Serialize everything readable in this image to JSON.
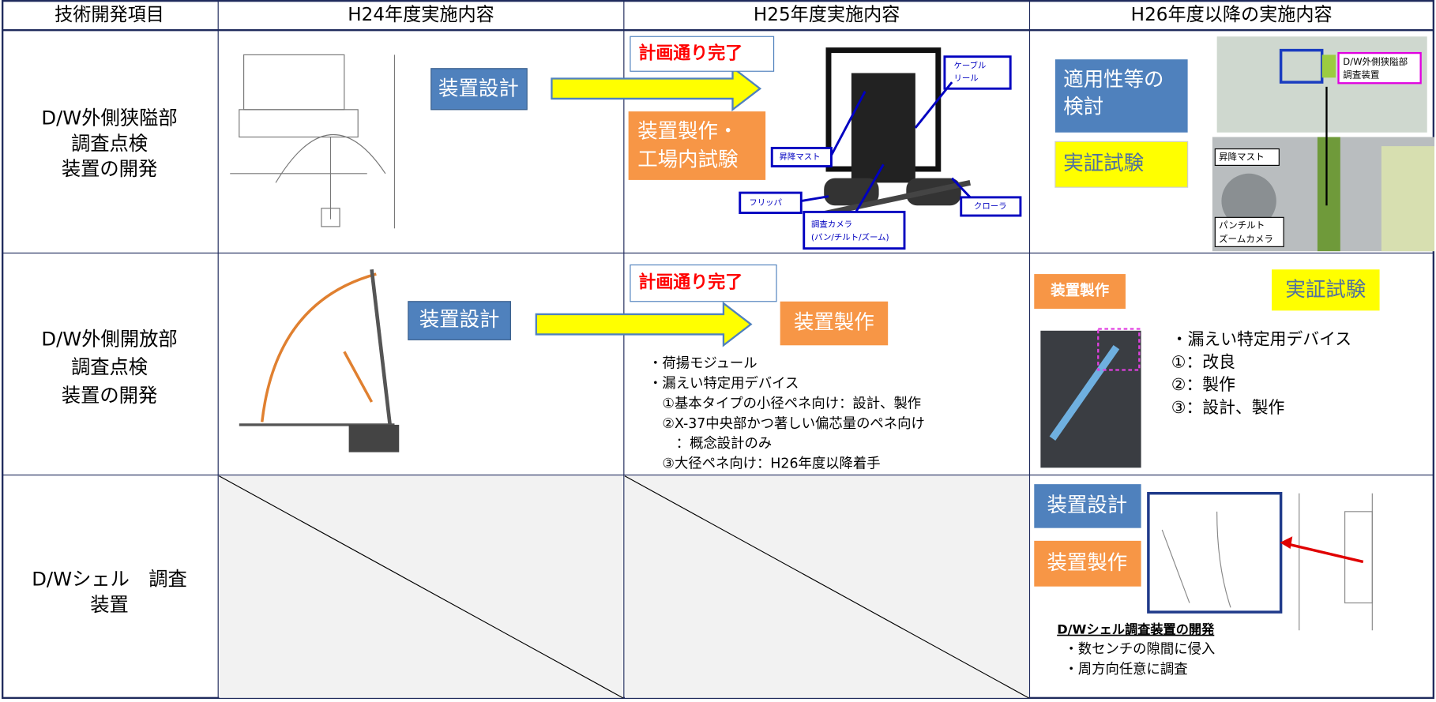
{
  "table": {
    "header": [
      "技術開発項目",
      "H24年度実施内容",
      "H25年度実施内容",
      "H26年度以降の実施内容"
    ],
    "rows": [
      {
        "item": [
          "D/W外側狭隘部",
          "調査点検",
          "装置の開発"
        ],
        "h24": {
          "box": "装置設計"
        },
        "h25": {
          "status": "計画通り完了",
          "box": [
            "装置製作・",
            "工場内試験"
          ],
          "callouts": {
            "reel": [
              "ケーブル",
              "リール"
            ],
            "mast": "昇降マスト",
            "flipper": "フリッパ",
            "camera": [
              "調査カメラ",
              "(パン/チルト/ズーム)"
            ],
            "crawler": "クローラ"
          }
        },
        "h26": {
          "box1": [
            "適用性等の",
            "検討"
          ],
          "box2": "実証試験",
          "callouts": {
            "device": [
              "D/W外側狭隘部",
              "調査装置"
            ],
            "mast": "昇降マスト",
            "camera": [
              "パンチルト",
              "ズームカメラ"
            ]
          }
        }
      },
      {
        "item": [
          "D/W外側開放部",
          "調査点検",
          "装置の開発"
        ],
        "h24": {
          "box": "装置設計"
        },
        "h25": {
          "status": "計画通り完了",
          "box": "装置製作",
          "notes": [
            "・荷揚モジュール",
            "・漏えい特定用デバイス",
            "　①基本タイプの小径ペネ向け：設計、製作",
            "　②X-37中央部かつ著しい偏芯量のペネ向け",
            "　　：概念設計のみ",
            "　③大径ペネ向け：H26年度以降着手"
          ]
        },
        "h26": {
          "box1": "装置製作",
          "box2": "実証試験",
          "notes": [
            "・漏えい特定用デバイス",
            "①：改良",
            "②：製作",
            "③：設計、製作"
          ]
        }
      },
      {
        "item": [
          "D/Wシェル　調査",
          "装置"
        ],
        "h26": {
          "box1": "装置設計",
          "box2": "装置製作",
          "heading": "D/Wシェル調査装置の開発",
          "notes": [
            "・数センチの隙間に侵入",
            "・周方向任意に調査"
          ]
        }
      }
    ]
  }
}
